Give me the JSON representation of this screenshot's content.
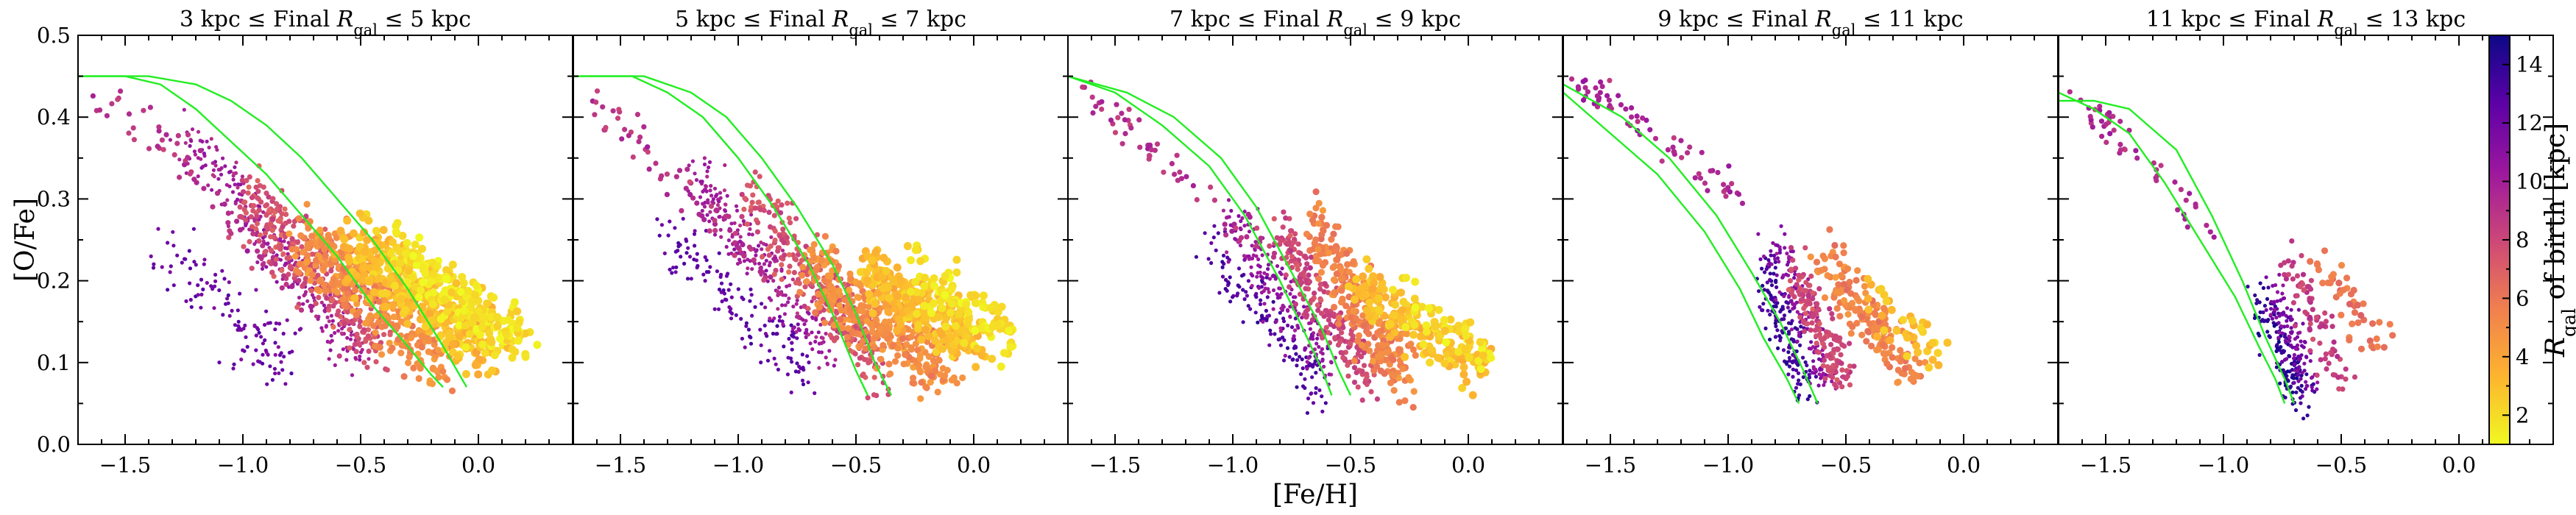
{
  "chart_data": {
    "type": "scatter",
    "xlabel": "[Fe/H]",
    "ylabel": "[O/Fe]",
    "xlim": [
      -1.7,
      0.4
    ],
    "ylim": [
      0.0,
      0.5
    ],
    "x_ticks": [
      "−1.5",
      "−1.0",
      "−0.5",
      "0.0"
    ],
    "x_tick_values": [
      -1.5,
      -1.0,
      -0.5,
      0.0
    ],
    "y_ticks": [
      "0.0",
      "0.1",
      "0.2",
      "0.3",
      "0.4",
      "0.5"
    ],
    "y_tick_values": [
      0.0,
      0.1,
      0.2,
      0.3,
      0.4,
      0.5
    ],
    "colorbar": {
      "label": "R_gal of birth [kpc]",
      "range": [
        1,
        15
      ],
      "ticks": [
        "2",
        "4",
        "6",
        "8",
        "10",
        "12",
        "14"
      ],
      "tick_values": [
        2,
        4,
        6,
        8,
        10,
        12,
        14
      ],
      "colormap": "plasma_r",
      "colors": [
        "#f0f921",
        "#fdb42f",
        "#f07f4f",
        "#cc4778",
        "#9c179e",
        "#5c01a6",
        "#0d0887"
      ]
    },
    "track_color": "#22ee22",
    "panels": [
      {
        "title": "3 kpc ≤ Final R_gal ≤ 5 kpc",
        "clouds": [
          {
            "fe": [
              -1.62,
              -1.45,
              -1.3,
              -1.15,
              -1.0,
              -0.85,
              -0.7
            ],
            "of": [
              0.43,
              0.4,
              0.36,
              0.32,
              0.27,
              0.22,
              0.17
            ],
            "spread": 0.02,
            "r": 9,
            "n": 70
          },
          {
            "fe": [
              -1.35,
              -1.2,
              -1.05,
              -0.9,
              -0.8
            ],
            "of": [
              0.25,
              0.2,
              0.16,
              0.12,
              0.1
            ],
            "spread": 0.04,
            "r": 12,
            "n": 120
          },
          {
            "fe": [
              -1.25,
              -1.1,
              -0.95,
              -0.8,
              -0.65,
              -0.5
            ],
            "of": [
              0.38,
              0.33,
              0.27,
              0.21,
              0.16,
              0.12
            ],
            "spread": 0.03,
            "r": 10,
            "n": 260
          },
          {
            "fe": [
              -1.0,
              -0.85,
              -0.7,
              -0.55,
              -0.4
            ],
            "of": [
              0.3,
              0.26,
              0.22,
              0.17,
              0.12
            ],
            "spread": 0.04,
            "r": 7.5,
            "n": 320
          },
          {
            "fe": [
              -0.75,
              -0.6,
              -0.45,
              -0.3,
              -0.15
            ],
            "of": [
              0.25,
              0.22,
              0.18,
              0.14,
              0.1
            ],
            "spread": 0.04,
            "r": 5,
            "n": 340
          },
          {
            "fe": [
              -0.55,
              -0.4,
              -0.25,
              -0.1,
              0.05
            ],
            "of": [
              0.24,
              0.21,
              0.18,
              0.15,
              0.12
            ],
            "spread": 0.035,
            "r": 3,
            "n": 340
          },
          {
            "fe": [
              -0.35,
              -0.2,
              -0.05,
              0.1,
              0.2
            ],
            "of": [
              0.24,
              0.2,
              0.17,
              0.14,
              0.13
            ],
            "spread": 0.03,
            "r": 1.8,
            "n": 230
          }
        ],
        "tracks": [
          {
            "fe": [
              -1.7,
              -1.5,
              -1.35,
              -1.2,
              -1.05,
              -0.9,
              -0.75,
              -0.6,
              -0.45,
              -0.3,
              -0.2,
              -0.15
            ],
            "of": [
              0.45,
              0.45,
              0.44,
              0.41,
              0.37,
              0.33,
              0.28,
              0.23,
              0.17,
              0.12,
              0.085,
              0.07
            ]
          },
          {
            "fe": [
              -1.7,
              -1.4,
              -1.2,
              -1.05,
              -0.9,
              -0.75,
              -0.6,
              -0.45,
              -0.3,
              -0.15,
              -0.05
            ],
            "of": [
              0.45,
              0.45,
              0.44,
              0.42,
              0.39,
              0.35,
              0.3,
              0.25,
              0.19,
              0.12,
              0.07
            ]
          }
        ]
      },
      {
        "title": "5 kpc ≤ Final R_gal ≤ 7 kpc",
        "clouds": [
          {
            "fe": [
              -1.62,
              -1.45,
              -1.3,
              -1.15,
              -1.0,
              -0.85
            ],
            "of": [
              0.42,
              0.38,
              0.34,
              0.29,
              0.24,
              0.19
            ],
            "spread": 0.02,
            "r": 9,
            "n": 70
          },
          {
            "fe": [
              -1.3,
              -1.15,
              -1.0,
              -0.85,
              -0.7
            ],
            "of": [
              0.26,
              0.22,
              0.17,
              0.13,
              0.09
            ],
            "spread": 0.035,
            "r": 12.5,
            "n": 140
          },
          {
            "fe": [
              -1.2,
              -1.05,
              -0.9,
              -0.75,
              -0.6
            ],
            "of": [
              0.34,
              0.28,
              0.22,
              0.16,
              0.11
            ],
            "spread": 0.03,
            "r": 10,
            "n": 230
          },
          {
            "fe": [
              -0.95,
              -0.8,
              -0.65,
              -0.5,
              -0.4
            ],
            "of": [
              0.3,
              0.25,
              0.19,
              0.14,
              0.09
            ],
            "spread": 0.035,
            "r": 7.5,
            "n": 300
          },
          {
            "fe": [
              -0.7,
              -0.55,
              -0.4,
              -0.25,
              -0.1
            ],
            "of": [
              0.22,
              0.18,
              0.15,
              0.12,
              0.09
            ],
            "spread": 0.035,
            "r": 5,
            "n": 320
          },
          {
            "fe": [
              -0.45,
              -0.3,
              -0.15,
              0.0
            ],
            "of": [
              0.21,
              0.18,
              0.15,
              0.13
            ],
            "spread": 0.03,
            "r": 3,
            "n": 260
          },
          {
            "fe": [
              -0.25,
              -0.1,
              0.05,
              0.15
            ],
            "of": [
              0.21,
              0.18,
              0.15,
              0.14
            ],
            "spread": 0.03,
            "r": 1.8,
            "n": 120
          }
        ],
        "tracks": [
          {
            "fe": [
              -1.7,
              -1.45,
              -1.3,
              -1.15,
              -1.0,
              -0.85,
              -0.7,
              -0.6,
              -0.5,
              -0.45
            ],
            "of": [
              0.45,
              0.45,
              0.43,
              0.4,
              0.35,
              0.29,
              0.22,
              0.16,
              0.09,
              0.06
            ]
          },
          {
            "fe": [
              -1.7,
              -1.4,
              -1.2,
              -1.05,
              -0.9,
              -0.75,
              -0.6,
              -0.5,
              -0.42,
              -0.35
            ],
            "of": [
              0.45,
              0.45,
              0.43,
              0.4,
              0.35,
              0.29,
              0.22,
              0.16,
              0.1,
              0.06
            ]
          }
        ]
      },
      {
        "title": "7 kpc ≤ Final R_gal ≤ 9 kpc",
        "clouds": [
          {
            "fe": [
              -1.62,
              -1.45,
              -1.3,
              -1.15,
              -1.0,
              -0.9
            ],
            "of": [
              0.43,
              0.39,
              0.35,
              0.31,
              0.27,
              0.24
            ],
            "spread": 0.02,
            "r": 9,
            "n": 60
          },
          {
            "fe": [
              -1.1,
              -0.95,
              -0.8,
              -0.7,
              -0.62
            ],
            "of": [
              0.24,
              0.19,
              0.14,
              0.1,
              0.07
            ],
            "spread": 0.03,
            "r": 13,
            "n": 140
          },
          {
            "fe": [
              -1.0,
              -0.9,
              -0.8,
              -0.7,
              -0.6
            ],
            "of": [
              0.27,
              0.23,
              0.18,
              0.14,
              0.1
            ],
            "spread": 0.03,
            "r": 10.5,
            "n": 180
          },
          {
            "fe": [
              -0.8,
              -0.7,
              -0.6,
              -0.5,
              -0.42
            ],
            "of": [
              0.26,
              0.21,
              0.16,
              0.12,
              0.08
            ],
            "spread": 0.03,
            "r": 8,
            "n": 220
          },
          {
            "fe": [
              -0.65,
              -0.55,
              -0.45,
              -0.35,
              -0.25
            ],
            "of": [
              0.26,
              0.21,
              0.16,
              0.12,
              0.09
            ],
            "spread": 0.035,
            "r": 5.5,
            "n": 260
          },
          {
            "fe": [
              -0.45,
              -0.35,
              -0.25,
              -0.1,
              0.05
            ],
            "of": [
              0.2,
              0.17,
              0.14,
              0.12,
              0.1
            ],
            "spread": 0.03,
            "r": 3,
            "n": 160
          },
          {
            "fe": [
              -0.3,
              -0.15,
              0.0,
              0.1
            ],
            "of": [
              0.18,
              0.15,
              0.13,
              0.11
            ],
            "spread": 0.025,
            "r": 1.8,
            "n": 50
          }
        ],
        "tracks": [
          {
            "fe": [
              -1.7,
              -1.5,
              -1.3,
              -1.1,
              -0.95,
              -0.8,
              -0.7,
              -0.62,
              -0.58
            ],
            "of": [
              0.45,
              0.43,
              0.39,
              0.34,
              0.28,
              0.2,
              0.14,
              0.09,
              0.06
            ]
          },
          {
            "fe": [
              -1.7,
              -1.45,
              -1.25,
              -1.05,
              -0.9,
              -0.75,
              -0.62,
              -0.55,
              -0.5
            ],
            "of": [
              0.45,
              0.43,
              0.4,
              0.35,
              0.29,
              0.21,
              0.14,
              0.09,
              0.06
            ]
          }
        ]
      },
      {
        "title": "9 kpc ≤ Final R_gal ≤ 11 kpc",
        "clouds": [
          {
            "fe": [
              -1.65,
              -1.5,
              -1.35,
              -1.2,
              -1.05,
              -0.95
            ],
            "of": [
              0.44,
              0.42,
              0.39,
              0.36,
              0.33,
              0.3
            ],
            "spread": 0.015,
            "r": 9.5,
            "n": 70
          },
          {
            "fe": [
              -0.85,
              -0.78,
              -0.72,
              -0.66
            ],
            "of": [
              0.22,
              0.16,
              0.11,
              0.07
            ],
            "spread": 0.025,
            "r": 13.5,
            "n": 160
          },
          {
            "fe": [
              -0.8,
              -0.72,
              -0.65,
              -0.58
            ],
            "of": [
              0.24,
              0.19,
              0.13,
              0.08
            ],
            "spread": 0.025,
            "r": 11,
            "n": 140
          },
          {
            "fe": [
              -0.72,
              -0.65,
              -0.58,
              -0.5
            ],
            "of": [
              0.22,
              0.17,
              0.12,
              0.08
            ],
            "spread": 0.025,
            "r": 8,
            "n": 150
          },
          {
            "fe": [
              -0.6,
              -0.5,
              -0.4,
              -0.3,
              -0.2
            ],
            "of": [
              0.23,
              0.19,
              0.15,
              0.12,
              0.1
            ],
            "spread": 0.03,
            "r": 5.5,
            "n": 160
          },
          {
            "fe": [
              -0.4,
              -0.3,
              -0.2,
              -0.1
            ],
            "of": [
              0.19,
              0.16,
              0.13,
              0.11
            ],
            "spread": 0.025,
            "r": 3,
            "n": 40
          }
        ],
        "tracks": [
          {
            "fe": [
              -1.7,
              -1.5,
              -1.3,
              -1.1,
              -0.95,
              -0.85,
              -0.75,
              -0.7
            ],
            "of": [
              0.43,
              0.38,
              0.33,
              0.26,
              0.19,
              0.13,
              0.08,
              0.05
            ]
          },
          {
            "fe": [
              -1.7,
              -1.45,
              -1.25,
              -1.05,
              -0.9,
              -0.78,
              -0.68,
              -0.62
            ],
            "of": [
              0.44,
              0.4,
              0.35,
              0.28,
              0.21,
              0.15,
              0.09,
              0.05
            ]
          }
        ]
      },
      {
        "title": "11 kpc ≤ Final R_gal ≤ 13 kpc",
        "clouds": [
          {
            "fe": [
              -1.62,
              -1.5,
              -1.35,
              -1.2,
              -1.05
            ],
            "of": [
              0.42,
              0.39,
              0.35,
              0.31,
              0.26
            ],
            "spread": 0.015,
            "r": 9.5,
            "n": 50
          },
          {
            "fe": [
              -0.85,
              -0.78,
              -0.72,
              -0.68
            ],
            "of": [
              0.18,
              0.13,
              0.09,
              0.06
            ],
            "spread": 0.02,
            "r": 14,
            "n": 130
          },
          {
            "fe": [
              -0.8,
              -0.74,
              -0.68,
              -0.62
            ],
            "of": [
              0.2,
              0.15,
              0.11,
              0.07
            ],
            "spread": 0.022,
            "r": 11.5,
            "n": 110
          },
          {
            "fe": [
              -0.72,
              -0.65,
              -0.58,
              -0.5
            ],
            "of": [
              0.22,
              0.17,
              0.13,
              0.09
            ],
            "spread": 0.025,
            "r": 8.5,
            "n": 80
          },
          {
            "fe": [
              -0.6,
              -0.5,
              -0.4,
              -0.3
            ],
            "of": [
              0.22,
              0.19,
              0.15,
              0.12
            ],
            "spread": 0.025,
            "r": 6,
            "n": 45
          }
        ],
        "tracks": [
          {
            "fe": [
              -1.7,
              -1.55,
              -1.4,
              -1.25,
              -1.1,
              -0.95,
              -0.85,
              -0.78,
              -0.74
            ],
            "of": [
              0.43,
              0.41,
              0.38,
              0.32,
              0.25,
              0.18,
              0.12,
              0.08,
              0.05
            ]
          },
          {
            "fe": [
              -1.7,
              -1.55,
              -1.4,
              -1.2,
              -1.05,
              -0.92,
              -0.82,
              -0.74,
              -0.7
            ],
            "of": [
              0.42,
              0.42,
              0.41,
              0.36,
              0.28,
              0.2,
              0.13,
              0.08,
              0.05
            ]
          }
        ]
      }
    ]
  }
}
